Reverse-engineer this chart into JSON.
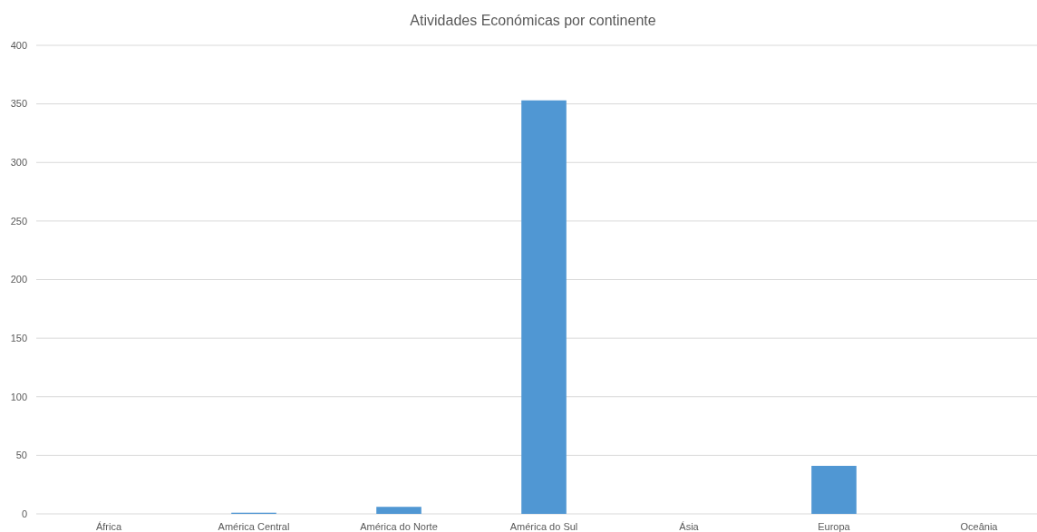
{
  "chart_data": {
    "type": "bar",
    "title": "Atividades Económicas por continente",
    "categories": [
      "África",
      "América Central",
      "América do Norte",
      "América do Sul",
      "Ásia",
      "Europa",
      "Oceânia"
    ],
    "values": [
      0,
      1,
      6,
      353,
      0,
      41,
      0
    ],
    "color": "#5097d3",
    "ylim": [
      0,
      400
    ],
    "yticks": [
      0,
      50,
      100,
      150,
      200,
      250,
      300,
      350,
      400
    ],
    "grid": true
  }
}
